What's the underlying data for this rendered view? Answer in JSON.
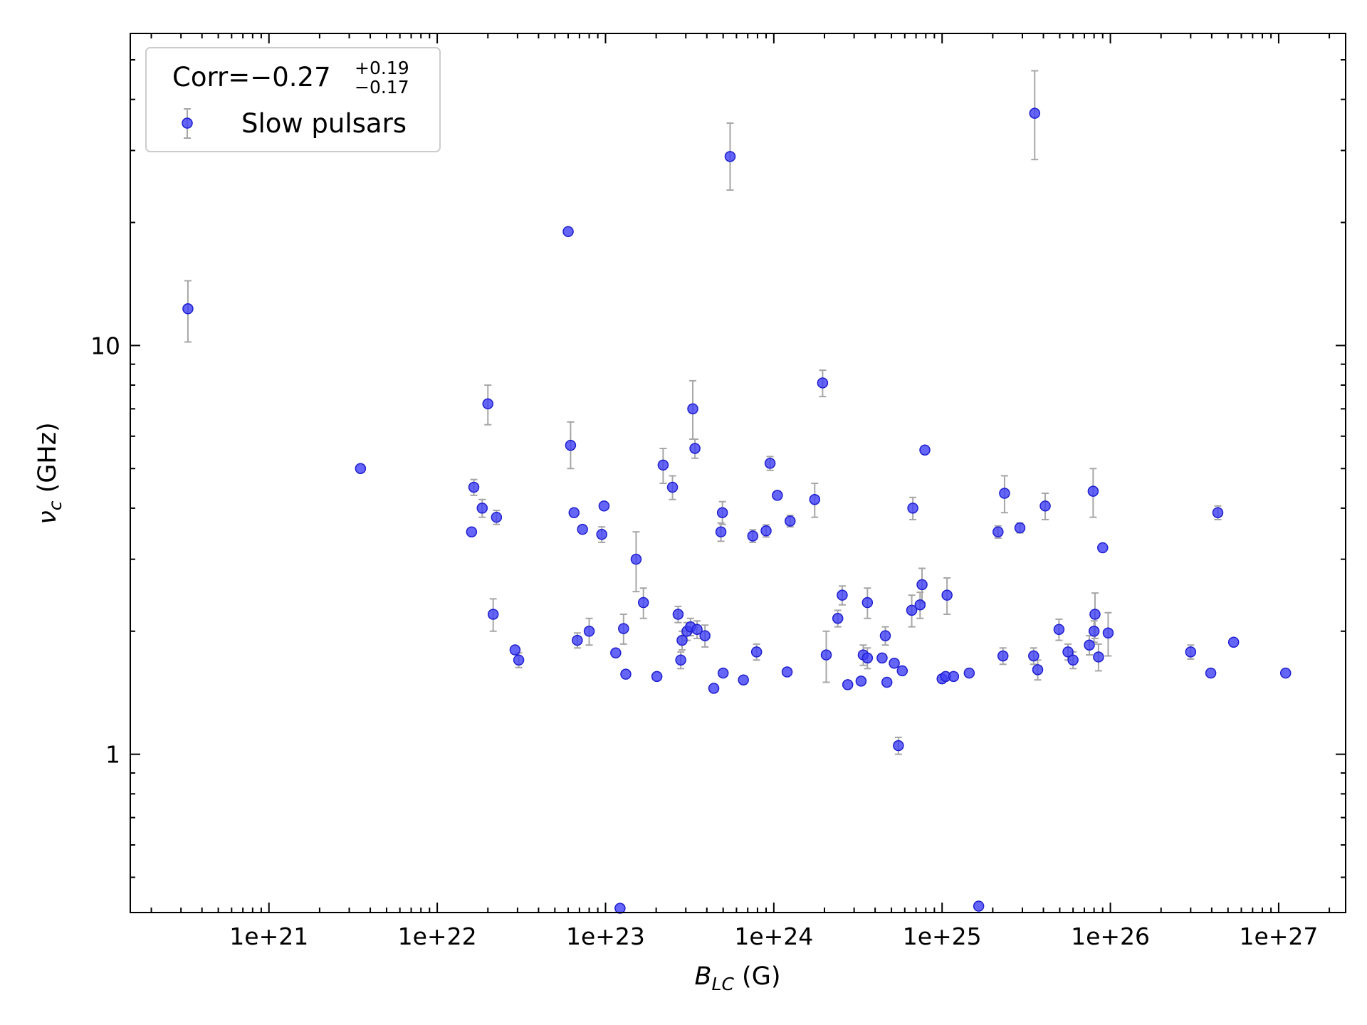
{
  "chart_data": {
    "type": "scatter",
    "xlabel": {
      "main": "B",
      "sub": "LC",
      "unit": " (G)"
    },
    "ylabel": {
      "main": "ν",
      "sub": "c",
      "unit": " (GHz)"
    },
    "x_scale": "log",
    "y_scale": "log",
    "xlim": [
      1.5e+20,
      2.5e+27
    ],
    "ylim": [
      0.41,
      58
    ],
    "x_tick_values": [
      1e+21,
      1e+22,
      1e+23,
      1e+24,
      1e+25,
      1e+26,
      1e+27
    ],
    "x_tick_labels": [
      "1e+21",
      "1e+22",
      "1e+23",
      "1e+24",
      "1e+25",
      "1e+26",
      "1e+27"
    ],
    "y_tick_values": [
      1,
      10
    ],
    "y_tick_labels": [
      "1",
      "10"
    ],
    "grid": false,
    "legend": {
      "position": "top-left",
      "corr": {
        "prefix": "Corr=−0.27",
        "sup": "+0.19",
        "sub": "−0.17"
      },
      "series_label": "Slow pulsars"
    },
    "colors": {
      "marker_fill": "#3f3ff5",
      "marker_edge": "#1f1fd0",
      "errorbar": "#a6a6a6",
      "axis": "#000000"
    },
    "series": [
      {
        "name": "Slow pulsars",
        "points": [
          {
            "x": 3.3e+20,
            "y": 12.3,
            "lo": 10.2,
            "hi": 14.4
          },
          {
            "x": 3.5e+21,
            "y": 5.0
          },
          {
            "x": 1.6e+22,
            "y": 3.5
          },
          {
            "x": 1.65e+22,
            "y": 4.5,
            "lo": 4.3,
            "hi": 4.7
          },
          {
            "x": 1.85e+22,
            "y": 4.0,
            "lo": 3.8,
            "hi": 4.2
          },
          {
            "x": 2e+22,
            "y": 7.2,
            "lo": 6.4,
            "hi": 8.0
          },
          {
            "x": 2.15e+22,
            "y": 2.2,
            "lo": 2.0,
            "hi": 2.4
          },
          {
            "x": 2.25e+22,
            "y": 3.8,
            "lo": 3.65,
            "hi": 3.95
          },
          {
            "x": 2.9e+22,
            "y": 1.8
          },
          {
            "x": 3.05e+22,
            "y": 1.7,
            "lo": 1.63,
            "hi": 1.77
          },
          {
            "x": 6e+22,
            "y": 19.0
          },
          {
            "x": 6.2e+22,
            "y": 5.7,
            "lo": 5.0,
            "hi": 6.5
          },
          {
            "x": 6.5e+22,
            "y": 3.9
          },
          {
            "x": 6.8e+22,
            "y": 1.9,
            "lo": 1.82,
            "hi": 1.98
          },
          {
            "x": 7.3e+22,
            "y": 3.55
          },
          {
            "x": 8e+22,
            "y": 2.0,
            "lo": 1.85,
            "hi": 2.15
          },
          {
            "x": 9.5e+22,
            "y": 3.45,
            "lo": 3.3,
            "hi": 3.6
          },
          {
            "x": 9.8e+22,
            "y": 4.05
          },
          {
            "x": 1.15e+23,
            "y": 1.77
          },
          {
            "x": 1.22e+23,
            "y": 0.42
          },
          {
            "x": 1.28e+23,
            "y": 2.03,
            "lo": 1.86,
            "hi": 2.2
          },
          {
            "x": 1.32e+23,
            "y": 1.57
          },
          {
            "x": 1.52e+23,
            "y": 3.0,
            "lo": 2.5,
            "hi": 3.5
          },
          {
            "x": 1.68e+23,
            "y": 2.35,
            "lo": 2.15,
            "hi": 2.55
          },
          {
            "x": 2.02e+23,
            "y": 1.55
          },
          {
            "x": 2.2e+23,
            "y": 5.1,
            "lo": 4.6,
            "hi": 5.6
          },
          {
            "x": 2.5e+23,
            "y": 4.5,
            "lo": 4.2,
            "hi": 4.8
          },
          {
            "x": 2.7e+23,
            "y": 2.2,
            "lo": 2.1,
            "hi": 2.3
          },
          {
            "x": 2.8e+23,
            "y": 1.7,
            "lo": 1.62,
            "hi": 1.78
          },
          {
            "x": 2.85e+23,
            "y": 1.9,
            "lo": 1.8,
            "hi": 2.0
          },
          {
            "x": 3.05e+23,
            "y": 2.0,
            "lo": 1.9,
            "hi": 2.1
          },
          {
            "x": 3.2e+23,
            "y": 2.05,
            "lo": 1.95,
            "hi": 2.15
          },
          {
            "x": 3.3e+23,
            "y": 7.0,
            "lo": 5.9,
            "hi": 8.2
          },
          {
            "x": 3.4e+23,
            "y": 5.6,
            "lo": 5.3,
            "hi": 5.9
          },
          {
            "x": 3.5e+23,
            "y": 2.02,
            "lo": 1.92,
            "hi": 2.12
          },
          {
            "x": 3.9e+23,
            "y": 1.95,
            "lo": 1.83,
            "hi": 2.07
          },
          {
            "x": 4.4e+23,
            "y": 1.45
          },
          {
            "x": 4.85e+23,
            "y": 3.5,
            "lo": 3.32,
            "hi": 3.68
          },
          {
            "x": 4.95e+23,
            "y": 3.9,
            "lo": 3.65,
            "hi": 4.15
          },
          {
            "x": 5e+23,
            "y": 1.58
          },
          {
            "x": 5.5e+23,
            "y": 29.0,
            "lo": 24.0,
            "hi": 35.0
          },
          {
            "x": 6.6e+23,
            "y": 1.52
          },
          {
            "x": 7.5e+23,
            "y": 3.42,
            "lo": 3.3,
            "hi": 3.54
          },
          {
            "x": 7.9e+23,
            "y": 1.78,
            "lo": 1.7,
            "hi": 1.86
          },
          {
            "x": 9e+23,
            "y": 3.52,
            "lo": 3.4,
            "hi": 3.64
          },
          {
            "x": 9.5e+23,
            "y": 5.15,
            "lo": 4.95,
            "hi": 5.35
          },
          {
            "x": 1.05e+24,
            "y": 4.3
          },
          {
            "x": 1.2e+24,
            "y": 1.59
          },
          {
            "x": 1.25e+24,
            "y": 3.72,
            "lo": 3.6,
            "hi": 3.84
          },
          {
            "x": 1.75e+24,
            "y": 4.2,
            "lo": 3.8,
            "hi": 4.6
          },
          {
            "x": 1.95e+24,
            "y": 8.1,
            "lo": 7.5,
            "hi": 8.7
          },
          {
            "x": 2.05e+24,
            "y": 1.75,
            "lo": 1.5,
            "hi": 2.0
          },
          {
            "x": 2.4e+24,
            "y": 2.15,
            "lo": 2.05,
            "hi": 2.25
          },
          {
            "x": 2.55e+24,
            "y": 2.45,
            "lo": 2.32,
            "hi": 2.58
          },
          {
            "x": 2.75e+24,
            "y": 1.48
          },
          {
            "x": 3.3e+24,
            "y": 1.51
          },
          {
            "x": 3.4e+24,
            "y": 1.75,
            "lo": 1.65,
            "hi": 1.85
          },
          {
            "x": 3.6e+24,
            "y": 1.72,
            "lo": 1.62,
            "hi": 1.82
          },
          {
            "x": 3.6e+24,
            "y": 2.35,
            "lo": 2.15,
            "hi": 2.55
          },
          {
            "x": 4.4e+24,
            "y": 1.72
          },
          {
            "x": 4.6e+24,
            "y": 1.95,
            "lo": 1.85,
            "hi": 2.05
          },
          {
            "x": 4.7e+24,
            "y": 1.5
          },
          {
            "x": 5.2e+24,
            "y": 1.67
          },
          {
            "x": 5.5e+24,
            "y": 1.05,
            "lo": 1.0,
            "hi": 1.1
          },
          {
            "x": 5.8e+24,
            "y": 1.6
          },
          {
            "x": 6.6e+24,
            "y": 2.25,
            "lo": 2.05,
            "hi": 2.45
          },
          {
            "x": 6.7e+24,
            "y": 4.0,
            "lo": 3.75,
            "hi": 4.25
          },
          {
            "x": 7.4e+24,
            "y": 2.32,
            "lo": 2.15,
            "hi": 2.49
          },
          {
            "x": 7.6e+24,
            "y": 2.6,
            "lo": 2.35,
            "hi": 2.85
          },
          {
            "x": 7.9e+24,
            "y": 5.55
          },
          {
            "x": 1e+25,
            "y": 1.53
          },
          {
            "x": 1.05e+25,
            "y": 1.55
          },
          {
            "x": 1.07e+25,
            "y": 2.45,
            "lo": 2.2,
            "hi": 2.7
          },
          {
            "x": 1.17e+25,
            "y": 1.55
          },
          {
            "x": 1.45e+25,
            "y": 1.58
          },
          {
            "x": 1.65e+25,
            "y": 0.425
          },
          {
            "x": 2.15e+25,
            "y": 3.5,
            "lo": 3.38,
            "hi": 3.62
          },
          {
            "x": 2.3e+25,
            "y": 1.74,
            "lo": 1.66,
            "hi": 1.82
          },
          {
            "x": 2.35e+25,
            "y": 4.35,
            "lo": 3.9,
            "hi": 4.8
          },
          {
            "x": 2.9e+25,
            "y": 3.58,
            "lo": 3.48,
            "hi": 3.68
          },
          {
            "x": 3.5e+25,
            "y": 1.74,
            "lo": 1.66,
            "hi": 1.82
          },
          {
            "x": 3.55e+25,
            "y": 37.0,
            "lo": 28.5,
            "hi": 47.0
          },
          {
            "x": 3.7e+25,
            "y": 1.61,
            "lo": 1.52,
            "hi": 1.7
          },
          {
            "x": 4.1e+25,
            "y": 4.05,
            "lo": 3.75,
            "hi": 4.35
          },
          {
            "x": 4.95e+25,
            "y": 2.02,
            "lo": 1.9,
            "hi": 2.14
          },
          {
            "x": 5.6e+25,
            "y": 1.78,
            "lo": 1.7,
            "hi": 1.86
          },
          {
            "x": 6e+25,
            "y": 1.7,
            "lo": 1.62,
            "hi": 1.78
          },
          {
            "x": 7.5e+25,
            "y": 1.85,
            "lo": 1.75,
            "hi": 1.95
          },
          {
            "x": 7.9e+25,
            "y": 4.4,
            "lo": 3.8,
            "hi": 5.0
          },
          {
            "x": 8e+25,
            "y": 2.0,
            "lo": 1.88,
            "hi": 2.12
          },
          {
            "x": 8.1e+25,
            "y": 2.2,
            "lo": 1.92,
            "hi": 2.48
          },
          {
            "x": 8.5e+25,
            "y": 1.73,
            "lo": 1.6,
            "hi": 1.86
          },
          {
            "x": 9e+25,
            "y": 3.2
          },
          {
            "x": 9.7e+25,
            "y": 1.98,
            "lo": 1.74,
            "hi": 2.22
          },
          {
            "x": 3e+26,
            "y": 1.78,
            "lo": 1.71,
            "hi": 1.85
          },
          {
            "x": 3.95e+26,
            "y": 1.58
          },
          {
            "x": 4.35e+26,
            "y": 3.9,
            "lo": 3.75,
            "hi": 4.05
          },
          {
            "x": 5.4e+26,
            "y": 1.88
          },
          {
            "x": 1.1e+27,
            "y": 1.58
          }
        ]
      }
    ]
  }
}
